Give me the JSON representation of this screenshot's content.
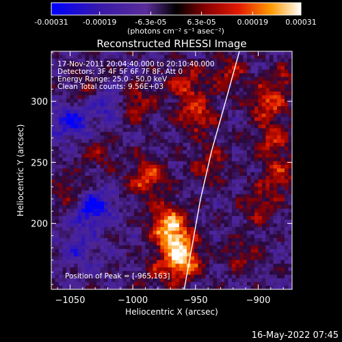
{
  "chart_data": {
    "type": "heatmap",
    "title": "Reconstructed RHESSI Image",
    "xlabel": "Heliocentric X (arcsec)",
    "ylabel": "Heliocentric Y (arcsec)",
    "xlim": [
      -1065,
      -873
    ],
    "ylim": [
      146,
      341
    ],
    "x_ticks": [
      -1050,
      -1000,
      -950,
      -900
    ],
    "x_tick_labels": [
      "−1050",
      "−1000",
      "−950",
      "−900"
    ],
    "y_ticks": [
      200,
      250,
      300
    ],
    "y_tick_labels": [
      "200",
      "250",
      "300"
    ],
    "colorbar": {
      "min": -0.00031,
      "max": 0.00031,
      "tick_values": [
        -0.00031,
        -0.00019,
        -6.3e-05,
        6.3e-05,
        0.00019,
        0.00031
      ],
      "tick_labels": [
        "-0.00031",
        "-0.00019",
        "-6.3e-05",
        "6.3e-05",
        "0.00019",
        "0.00031"
      ],
      "units": "(photons cm⁻² s⁻¹ asec⁻²)"
    },
    "annotations": {
      "time": "17-Nov-2011 20:04:40.000 to 20:10:40.000",
      "detectors": "Detectors: 3F 4F 5F 6F 7F 8F, Att 0",
      "energy": "Energy Range: 25.0 - 50.0 keV",
      "clean": "Clean     Total counts: 9.56E+03",
      "peak": "Position of Peak = [-965,163]"
    },
    "limb_curve": {
      "points": [
        [
          -959,
          146
        ],
        [
          -953,
          180
        ],
        [
          -946,
          220
        ],
        [
          -937,
          260
        ],
        [
          -926,
          300
        ],
        [
          -915,
          341
        ]
      ]
    },
    "hot_spots": [
      {
        "x": -962,
        "y": 170,
        "value": 0.00031
      },
      {
        "x": -968,
        "y": 190,
        "value": 0.00026
      },
      {
        "x": -990,
        "y": 240,
        "value": 0.00024
      },
      {
        "x": -975,
        "y": 205,
        "value": 0.00022
      },
      {
        "x": -1000,
        "y": 300,
        "value": 0.00018
      },
      {
        "x": -950,
        "y": 290,
        "value": 0.0002
      },
      {
        "x": -960,
        "y": 315,
        "value": 0.00019
      },
      {
        "x": -895,
        "y": 300,
        "value": 0.00021
      },
      {
        "x": -890,
        "y": 270,
        "value": 0.00018
      },
      {
        "x": -885,
        "y": 240,
        "value": 0.00017
      },
      {
        "x": -900,
        "y": 215,
        "value": 0.00014
      },
      {
        "x": -915,
        "y": 175,
        "value": 0.00012
      },
      {
        "x": -940,
        "y": 250,
        "value": 0.00015
      },
      {
        "x": -1050,
        "y": 225,
        "value": 0.00016
      },
      {
        "x": -1030,
        "y": 260,
        "value": 0.00011
      },
      {
        "x": -1040,
        "y": 310,
        "value": 0.0001
      },
      {
        "x": -985,
        "y": 160,
        "value": 0.0001
      },
      {
        "x": -925,
        "y": 325,
        "value": 0.00015
      },
      {
        "x": -880,
        "y": 320,
        "value": 0.00012
      }
    ],
    "cold_spots": [
      {
        "x": -1035,
        "y": 215,
        "value": -0.00028
      },
      {
        "x": -1050,
        "y": 285,
        "value": -0.00022
      },
      {
        "x": -1020,
        "y": 300,
        "value": -0.00016
      },
      {
        "x": -1045,
        "y": 180,
        "value": -0.00012
      }
    ]
  },
  "footer": {
    "date": "16-May-2022 07:45"
  }
}
